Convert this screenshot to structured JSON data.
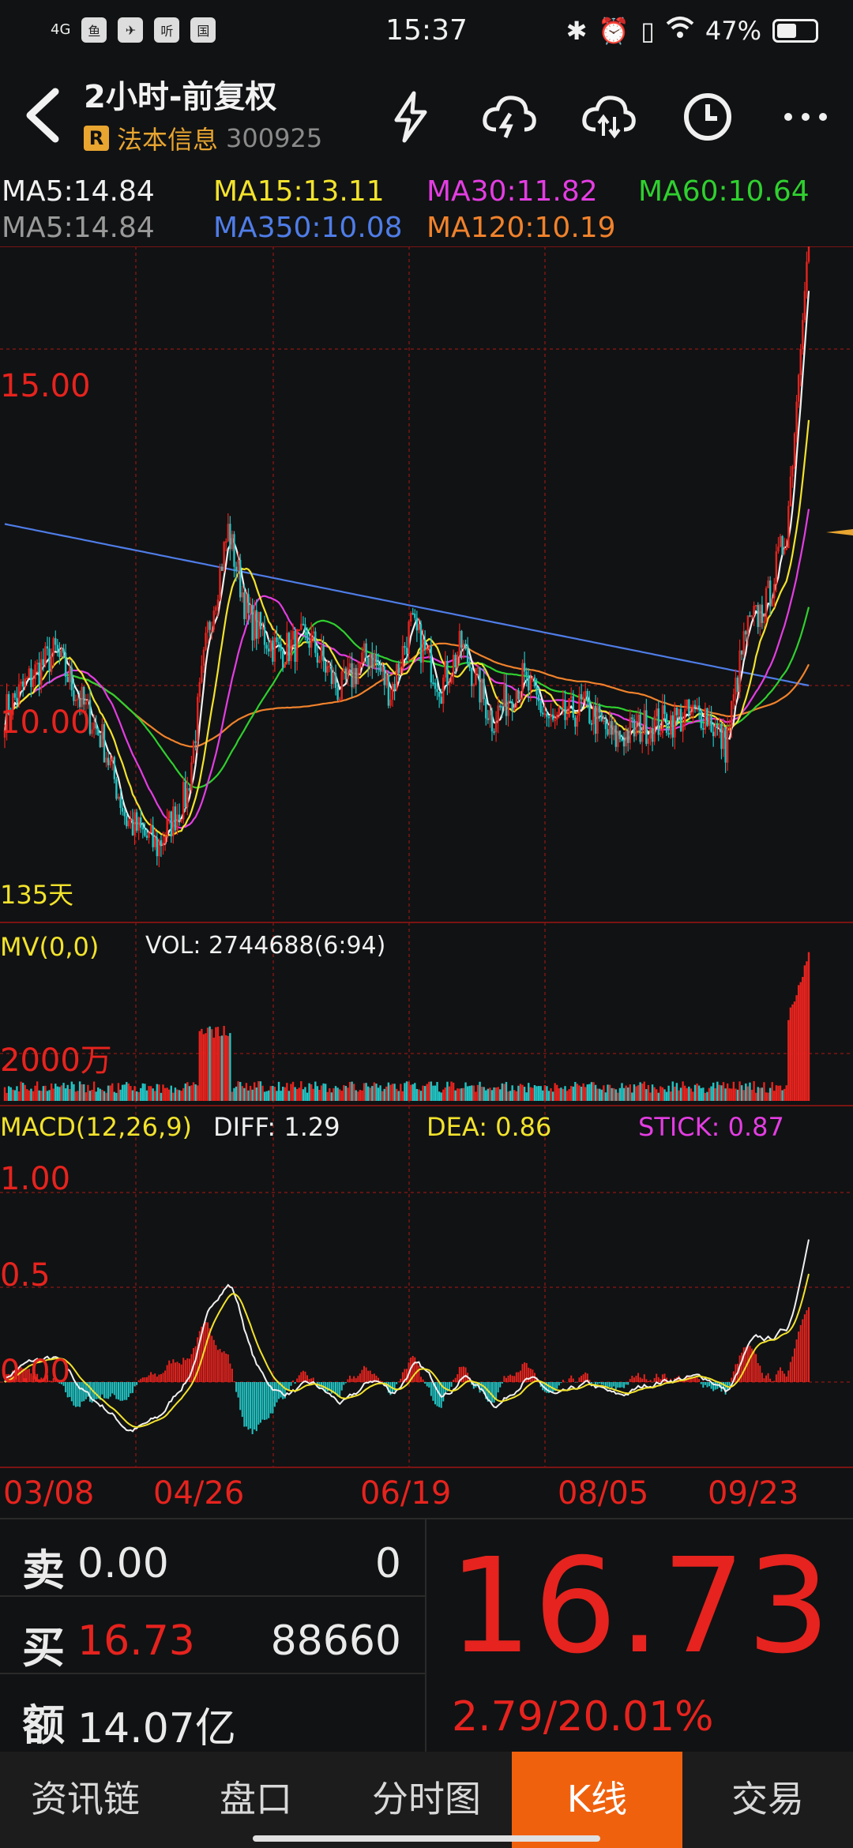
{
  "status": {
    "time": "15:37",
    "network": "4G",
    "app_icons": [
      "鱼",
      "✈",
      "听",
      "国"
    ],
    "battery": "47%"
  },
  "header": {
    "title": "2小时-前复权",
    "badge": "R",
    "stock_name": "法本信息",
    "stock_code": "300925",
    "icons": [
      "flash-icon",
      "cloud-lightning-icon",
      "cloud-sync-icon",
      "clock-icon",
      "more-icon"
    ]
  },
  "ma": {
    "row1": [
      {
        "text": "MA5:14.84",
        "color": "#f0f0f0"
      },
      {
        "text": "MA15:13.11",
        "color": "#f2e32c"
      },
      {
        "text": "MA30:11.82",
        "color": "#e43de3"
      },
      {
        "text": "MA60:10.64",
        "color": "#2fd02f"
      }
    ],
    "row2": [
      {
        "text": "MA5:14.84",
        "color": "#9a9a9a"
      },
      {
        "text": "MA350:10.08",
        "color": "#4f7de8"
      },
      {
        "text": "MA120:10.19",
        "color": "#f0822c"
      }
    ]
  },
  "main_chart": {
    "price_labels": [
      "15.00",
      "10.00"
    ],
    "period_label": "135天"
  },
  "volume": {
    "mv_label": "MV(0,0)",
    "vol_label": "VOL: 2744688(6:94)",
    "axis_label": "2000万"
  },
  "macd": {
    "name": "MACD(12,26,9)",
    "diff": "DIFF: 1.29",
    "dea": "DEA: 0.86",
    "stick": "STICK: 0.87",
    "axis": [
      "1.00",
      "0.5",
      "0.00"
    ]
  },
  "dates": [
    "03/08",
    "04/26",
    "06/19",
    "08/05",
    "09/23"
  ],
  "quote": {
    "sell_key": "卖",
    "sell_price": "0.00",
    "sell_vol": "0",
    "buy_key": "买",
    "buy_price": "16.73",
    "buy_vol": "88660",
    "amt_key": "额",
    "amount": "14.07亿",
    "last": "16.73",
    "change": "2.79/20.01%"
  },
  "tabs": [
    "资讯链",
    "盘口",
    "分时图",
    "K线",
    "交易"
  ],
  "active_tab": "K线",
  "colors": {
    "up": "#e6231e",
    "down": "#22c4c4",
    "bg": "#111213",
    "grid": "#7a1414",
    "active_tab": "#f0610e"
  },
  "chart_data": {
    "type": "candlestick",
    "title": "2小时-前复权",
    "price_ticks": [
      10.0,
      15.0
    ],
    "x_tick_labels": [
      "03/08",
      "04/26",
      "06/19",
      "08/05",
      "09/23"
    ],
    "last_close": 16.73,
    "ma_last": {
      "MA5": 14.84,
      "MA15": 13.11,
      "MA30": 11.82,
      "MA60": 10.64,
      "MA350": 10.08,
      "MA120": 10.19
    },
    "close_anchors": [
      [
        0,
        9.6
      ],
      [
        15,
        10.2
      ],
      [
        25,
        10.5
      ],
      [
        35,
        9.9
      ],
      [
        48,
        9.2
      ],
      [
        60,
        8.0
      ],
      [
        75,
        7.6
      ],
      [
        90,
        8.4
      ],
      [
        100,
        10.8
      ],
      [
        110,
        12.3
      ],
      [
        120,
        11.0
      ],
      [
        135,
        10.5
      ],
      [
        150,
        10.7
      ],
      [
        165,
        9.9
      ],
      [
        180,
        10.5
      ],
      [
        190,
        9.9
      ],
      [
        200,
        10.9
      ],
      [
        215,
        10.0
      ],
      [
        225,
        10.6
      ],
      [
        240,
        9.5
      ],
      [
        255,
        10.1
      ],
      [
        270,
        9.4
      ],
      [
        285,
        9.7
      ],
      [
        300,
        9.2
      ],
      [
        315,
        9.4
      ],
      [
        330,
        9.5
      ],
      [
        345,
        9.6
      ],
      [
        355,
        9.1
      ],
      [
        365,
        10.8
      ],
      [
        375,
        11.2
      ],
      [
        385,
        12.3
      ],
      [
        392,
        15.0
      ],
      [
        396,
        16.73
      ]
    ],
    "macd_axis": [
      0.0,
      0.5,
      1.0
    ],
    "diff_last": 1.29,
    "dea_last": 0.86,
    "stick_last": 0.87
  }
}
